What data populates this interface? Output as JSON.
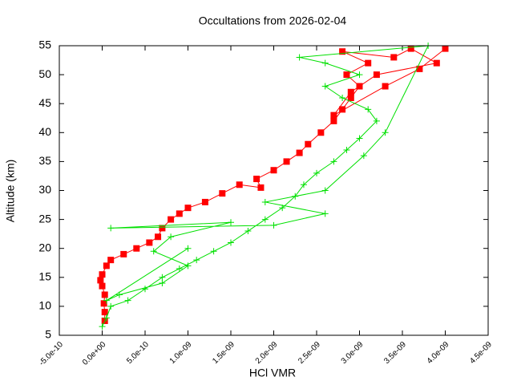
{
  "chart_data": {
    "type": "line",
    "title": "Occultations from 2026-02-04",
    "x_label": "HCl VMR",
    "y_label": "Altitude (km)",
    "xlim": [
      -5e-10,
      4.5e-09
    ],
    "xticks": [
      {
        "value": -5e-10,
        "label": "-5.0e-10"
      },
      {
        "value": 0,
        "label": "0.0e+00"
      },
      {
        "value": 5e-10,
        "label": "5.0e-10"
      },
      {
        "value": 1e-09,
        "label": "1.0e-09"
      },
      {
        "value": 1.5e-09,
        "label": "1.5e-09"
      },
      {
        "value": 2e-09,
        "label": "2.0e-09"
      },
      {
        "value": 2.5e-09,
        "label": "2.5e-09"
      },
      {
        "value": 3e-09,
        "label": "3.0e-09"
      },
      {
        "value": 3.5e-09,
        "label": "3.5e-09"
      },
      {
        "value": 4e-09,
        "label": "4.0e-09"
      },
      {
        "value": 4.5e-09,
        "label": "4.5e-09"
      }
    ],
    "ylim": [
      5,
      55
    ],
    "yticks": [
      5,
      10,
      15,
      20,
      25,
      30,
      35,
      40,
      45,
      50,
      55
    ],
    "grid": false,
    "series": [
      {
        "color": "#ff0000",
        "marker": "square",
        "x": [
          3e-11,
          3e-11,
          2e-11,
          3e-11,
          0,
          -2e-11,
          0,
          5e-11,
          1e-10,
          2.5e-10,
          4e-10,
          5.5e-10,
          6.5e-10,
          7e-10,
          8e-10,
          9e-10,
          1e-09,
          1.2e-09,
          1.4e-09,
          1.6e-09,
          1.85e-09,
          1.8e-09,
          2e-09,
          2.15e-09,
          2.3e-09,
          2.4e-09,
          2.55e-09,
          2.7e-09,
          2.8e-09,
          2.9e-09,
          3e-09,
          2.85e-09,
          3.1e-09,
          2.8e-09,
          3.4e-09,
          3.6e-09,
          3.9e-09,
          3.2e-09,
          2.9e-09,
          2.7e-09,
          3.3e-09,
          3.7e-09,
          4e-09
        ],
        "values": [
          7.5,
          9,
          10.5,
          12,
          13.5,
          14.5,
          15.5,
          17,
          18,
          19,
          20,
          21,
          22,
          23.5,
          25,
          26,
          27,
          28,
          29.5,
          31,
          30.5,
          32,
          33.5,
          35,
          36.5,
          38,
          40,
          42,
          44,
          46,
          48,
          50,
          52,
          54,
          53,
          54.5,
          52,
          50,
          47,
          43,
          48,
          51,
          54.5
        ]
      },
      {
        "color": "#00e000",
        "marker": "plus",
        "x": [
          0,
          5e-11,
          1e-10,
          3e-10,
          5e-10,
          7e-10,
          9e-10,
          1.1e-09,
          1.3e-09,
          1.5e-09,
          1.7e-09,
          1.9e-09,
          2.1e-09,
          2.25e-09,
          2.35e-09,
          2.5e-09,
          2.7e-09,
          2.85e-09,
          3e-09,
          3.2e-09,
          3.1e-09,
          2.8e-09,
          2.6e-09,
          3e-09,
          2.6e-09,
          2.3e-09,
          3.8e-09,
          3.3e-09,
          3.05e-09,
          2.6e-09,
          1.9e-09,
          2.6e-09,
          2e-09,
          1e-10,
          1.5e-09,
          8e-10,
          6e-10,
          1e-09,
          7e-10,
          2e-10,
          5e-11,
          1e-09
        ],
        "values": [
          6.5,
          8,
          10,
          11,
          13,
          15,
          16.5,
          18,
          19.5,
          21,
          23,
          25,
          27,
          29,
          31,
          33,
          35,
          37,
          39,
          42,
          44,
          46,
          48,
          50,
          52,
          53,
          55,
          40,
          36,
          30,
          28,
          26,
          24,
          23.5,
          24.5,
          22,
          19.5,
          17,
          14,
          12,
          11,
          20
        ]
      }
    ]
  }
}
